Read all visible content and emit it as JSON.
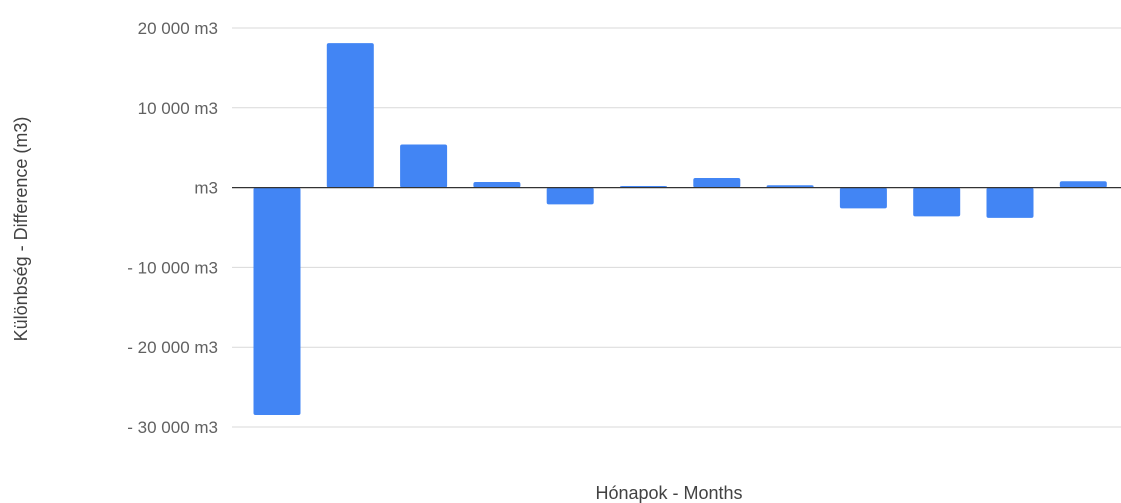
{
  "chart_data": {
    "type": "bar",
    "title": "",
    "xlabel": "Hónapok - Months",
    "ylabel": "Különbség - Difference (m3)",
    "ylim": [
      -30000,
      20000
    ],
    "y_ticks": [
      20000,
      10000,
      0,
      -10000,
      -20000,
      -30000
    ],
    "y_tick_labels": [
      "20 000  m3",
      "10 000  m3",
      "m3",
      "- 10 000  m3",
      "- 20 000  m3",
      "- 30 000  m3"
    ],
    "grid": true,
    "legend": "none",
    "colors": {
      "bar": "#4285f4"
    },
    "values": [
      -28500,
      18100,
      5400,
      700,
      -2100,
      200,
      1200,
      300,
      -2600,
      -3600,
      -3800,
      800
    ]
  }
}
